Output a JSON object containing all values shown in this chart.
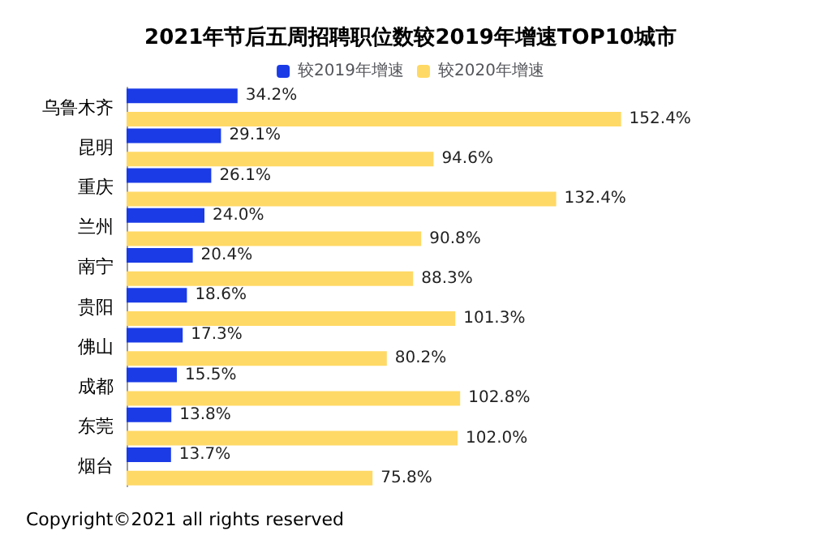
{
  "chart_data": {
    "type": "bar",
    "orientation": "horizontal",
    "title": "2021年节后五周招聘职位数较2019年增速TOP10城市",
    "categories": [
      "乌鲁木齐",
      "昆明",
      "重庆",
      "兰州",
      "南宁",
      "贵阳",
      "佛山",
      "成都",
      "东莞",
      "烟台"
    ],
    "series": [
      {
        "name": "较2019年增速",
        "color": "#1a3be6",
        "values": [
          34.2,
          29.1,
          26.1,
          24.0,
          20.4,
          18.6,
          17.3,
          15.5,
          13.8,
          13.7
        ],
        "value_labels": [
          "34.2%",
          "29.1%",
          "26.1%",
          "24.0%",
          "20.4%",
          "18.6%",
          "17.3%",
          "15.5%",
          "13.8%",
          "13.7%"
        ]
      },
      {
        "name": "较2020年增速",
        "color": "#ffd966",
        "values": [
          152.4,
          94.6,
          132.4,
          90.8,
          88.3,
          101.3,
          80.2,
          102.8,
          102.0,
          75.8
        ],
        "value_labels": [
          "152.4%",
          "94.6%",
          "132.4%",
          "90.8%",
          "88.3%",
          "101.3%",
          "80.2%",
          "102.8%",
          "102.0%",
          "75.8%"
        ]
      }
    ],
    "legend": "top",
    "tick_labels": "y",
    "annotations": [
      "Copyright©2021 all rights reserved"
    ]
  }
}
